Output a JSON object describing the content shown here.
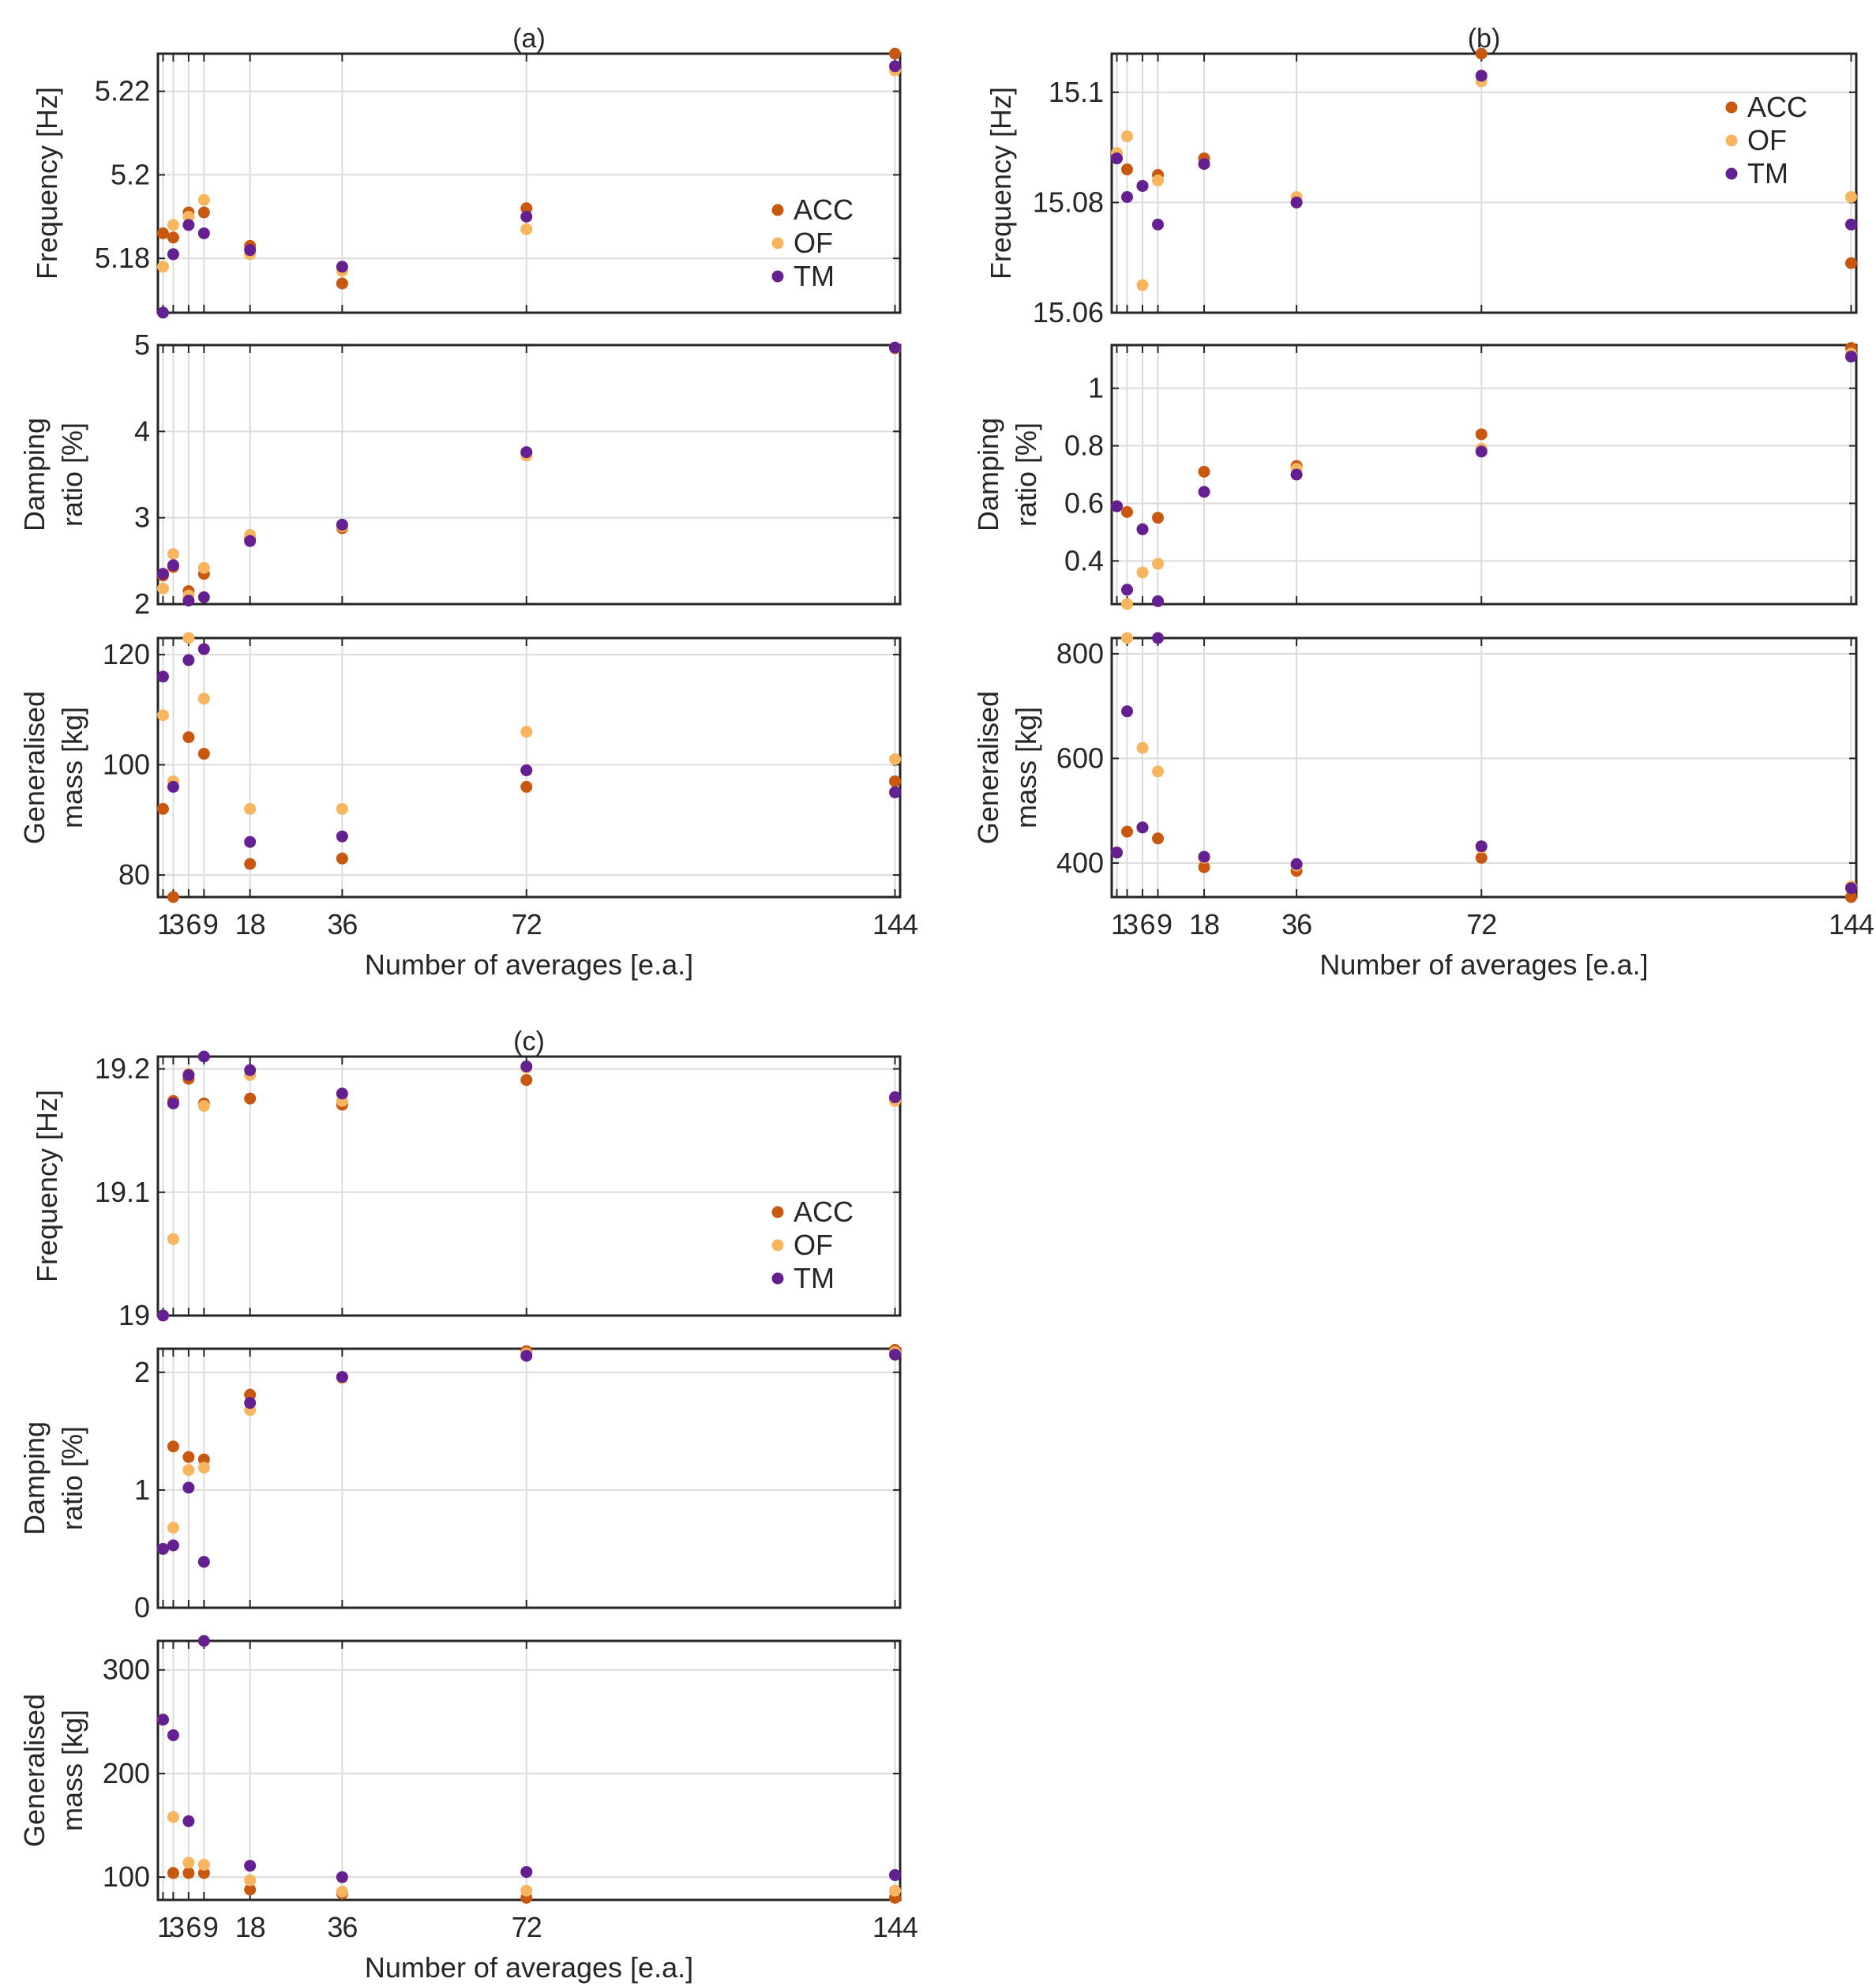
{
  "figure": {
    "x_categories": [
      1,
      3,
      6,
      9,
      18,
      36,
      72,
      144
    ],
    "x_ticks": [
      1,
      3,
      6,
      9,
      18,
      36,
      72,
      144
    ],
    "x_tick_labels": [
      "1",
      "3",
      "6",
      "9",
      "18",
      "36",
      "72",
      "144"
    ],
    "xlim": [
      0,
      145
    ],
    "xlabel": "Number of averages [e.a.]",
    "colors": {
      "ACC": "#c8580f",
      "OF": "#f8b55f",
      "TM": "#642090"
    }
  },
  "chart_data": [
    {
      "type": "scatter",
      "panel": "(a)",
      "title": "(a)",
      "legend": [
        "ACC",
        "OF",
        "TM"
      ],
      "legend_position": "right",
      "subplots": [
        {
          "ylabel": [
            "Frequency [Hz]"
          ],
          "ylim": [
            5.167,
            5.229
          ],
          "yticks": [
            5.18,
            5.2,
            5.22
          ],
          "ytick_labels": [
            "5.18",
            "5.2",
            "5.22"
          ],
          "series": [
            {
              "name": "ACC",
              "values": [
                5.186,
                5.185,
                5.191,
                5.191,
                5.183,
                5.174,
                5.192,
                5.229
              ]
            },
            {
              "name": "OF",
              "values": [
                5.178,
                5.188,
                5.19,
                5.194,
                5.181,
                5.177,
                5.187,
                5.225
              ]
            },
            {
              "name": "TM",
              "values": [
                5.167,
                5.181,
                5.188,
                5.186,
                5.182,
                5.178,
                5.19,
                5.226
              ]
            }
          ]
        },
        {
          "ylabel": [
            "Damping",
            "ratio [%]"
          ],
          "ylim": [
            2,
            5
          ],
          "yticks": [
            2,
            3,
            4,
            5
          ],
          "ytick_labels": [
            "2",
            "3",
            "4",
            "5"
          ],
          "series": [
            {
              "name": "ACC",
              "values": [
                2.33,
                2.43,
                2.15,
                2.35,
                2.76,
                2.88,
                3.75,
                4.97
              ]
            },
            {
              "name": "OF",
              "values": [
                2.18,
                2.58,
                2.1,
                2.42,
                2.8,
                2.9,
                3.72,
                4.96
              ]
            },
            {
              "name": "TM",
              "values": [
                2.35,
                2.45,
                2.04,
                2.08,
                2.73,
                2.92,
                3.76,
                4.97
              ]
            }
          ]
        },
        {
          "ylabel": [
            "Generalised",
            "mass [kg]"
          ],
          "ylim": [
            76,
            123
          ],
          "yticks": [
            80,
            100,
            120
          ],
          "ytick_labels": [
            "80",
            "100",
            "120"
          ],
          "series": [
            {
              "name": "ACC",
              "values": [
                92,
                76,
                105,
                102,
                82,
                83,
                96,
                97
              ]
            },
            {
              "name": "OF",
              "values": [
                109,
                97,
                123,
                112,
                92,
                92,
                106,
                101
              ]
            },
            {
              "name": "TM",
              "values": [
                116,
                96,
                119,
                121,
                86,
                87,
                99,
                95
              ]
            }
          ]
        }
      ]
    },
    {
      "type": "scatter",
      "panel": "(b)",
      "title": "(b)",
      "legend": [
        "ACC",
        "OF",
        "TM"
      ],
      "legend_position": "top-right",
      "subplots": [
        {
          "ylabel": [
            "Frequency [Hz]"
          ],
          "ylim": [
            15.06,
            15.107
          ],
          "yticks": [
            15.06,
            15.08,
            15.1
          ],
          "ytick_labels": [
            "15.06",
            "15.08",
            "15.1"
          ],
          "series": [
            {
              "name": "ACC",
              "values": [
                15.088,
                15.086,
                15.083,
                15.085,
                15.088,
                15.08,
                15.107,
                15.069
              ]
            },
            {
              "name": "OF",
              "values": [
                15.089,
                15.092,
                15.065,
                15.084,
                15.087,
                15.081,
                15.102,
                15.081
              ]
            },
            {
              "name": "TM",
              "values": [
                15.088,
                15.081,
                15.083,
                15.076,
                15.087,
                15.08,
                15.103,
                15.076
              ]
            }
          ]
        },
        {
          "ylabel": [
            "Damping",
            "ratio [%]"
          ],
          "ylim": [
            0.25,
            1.15
          ],
          "yticks": [
            0.4,
            0.6,
            0.8,
            1.0
          ],
          "ytick_labels": [
            "0.4",
            "0.6",
            "0.8",
            "1"
          ],
          "series": [
            {
              "name": "ACC",
              "values": [
                0.59,
                0.57,
                0.51,
                0.55,
                0.71,
                0.73,
                0.84,
                1.14
              ]
            },
            {
              "name": "OF",
              "values": [
                0.59,
                0.25,
                0.36,
                0.39,
                0.64,
                0.72,
                0.79,
                1.12
              ]
            },
            {
              "name": "TM",
              "values": [
                0.59,
                0.3,
                0.51,
                0.26,
                0.64,
                0.7,
                0.78,
                1.11
              ]
            }
          ]
        },
        {
          "ylabel": [
            "Generalised",
            "mass [kg]"
          ],
          "ylim": [
            335,
            830
          ],
          "yticks": [
            400,
            600,
            800
          ],
          "ytick_labels": [
            "400",
            "600",
            "800"
          ],
          "series": [
            {
              "name": "ACC",
              "values": [
                420,
                460,
                468,
                447,
                392,
                385,
                410,
                335
              ]
            },
            {
              "name": "OF",
              "values": [
                420,
                830,
                620,
                575,
                410,
                395,
                430,
                355
              ]
            },
            {
              "name": "TM",
              "values": [
                420,
                690,
                468,
                830,
                412,
                398,
                432,
                352
              ]
            }
          ]
        }
      ]
    },
    {
      "type": "scatter",
      "panel": "(c)",
      "title": "(c)",
      "legend": [
        "ACC",
        "OF",
        "TM"
      ],
      "legend_position": "right",
      "subplots": [
        {
          "ylabel": [
            "Frequency [Hz]"
          ],
          "ylim": [
            19.0,
            19.21
          ],
          "yticks": [
            19.0,
            19.1,
            19.2
          ],
          "ytick_labels": [
            "19",
            "19.1",
            "19.2"
          ],
          "series": [
            {
              "name": "ACC",
              "values": [
                19.0,
                19.174,
                19.192,
                19.172,
                19.176,
                19.171,
                19.191,
                19.175
              ]
            },
            {
              "name": "OF",
              "values": [
                19.0,
                19.062,
                19.196,
                19.17,
                19.195,
                19.174,
                19.201,
                19.174
              ]
            },
            {
              "name": "TM",
              "values": [
                19.0,
                19.172,
                19.195,
                19.21,
                19.199,
                19.18,
                19.202,
                19.177
              ]
            }
          ]
        },
        {
          "ylabel": [
            "Damping",
            "ratio [%]"
          ],
          "ylim": [
            0,
            2.2
          ],
          "yticks": [
            0,
            1,
            2
          ],
          "ytick_labels": [
            "0",
            "1",
            "2"
          ],
          "series": [
            {
              "name": "ACC",
              "values": [
                0.5,
                1.37,
                1.28,
                1.26,
                1.81,
                1.96,
                2.18,
                2.19
              ]
            },
            {
              "name": "OF",
              "values": [
                0.5,
                0.68,
                1.17,
                1.19,
                1.68,
                1.95,
                2.16,
                2.17
              ]
            },
            {
              "name": "TM",
              "values": [
                0.5,
                0.53,
                1.02,
                0.39,
                1.74,
                1.96,
                2.14,
                2.15
              ]
            }
          ]
        },
        {
          "ylabel": [
            "Generalised",
            "mass [kg]"
          ],
          "ylim": [
            78,
            328
          ],
          "yticks": [
            100,
            200,
            300
          ],
          "ytick_labels": [
            "100",
            "200",
            "300"
          ],
          "series": [
            {
              "name": "ACC",
              "values": [
                252,
                104,
                104,
                104,
                88,
                84,
                80,
                80
              ]
            },
            {
              "name": "OF",
              "values": [
                252,
                158,
                114,
                112,
                97,
                86,
                87,
                87
              ]
            },
            {
              "name": "TM",
              "values": [
                252,
                237,
                154,
                328,
                111,
                100,
                105,
                102
              ]
            }
          ]
        }
      ]
    }
  ]
}
